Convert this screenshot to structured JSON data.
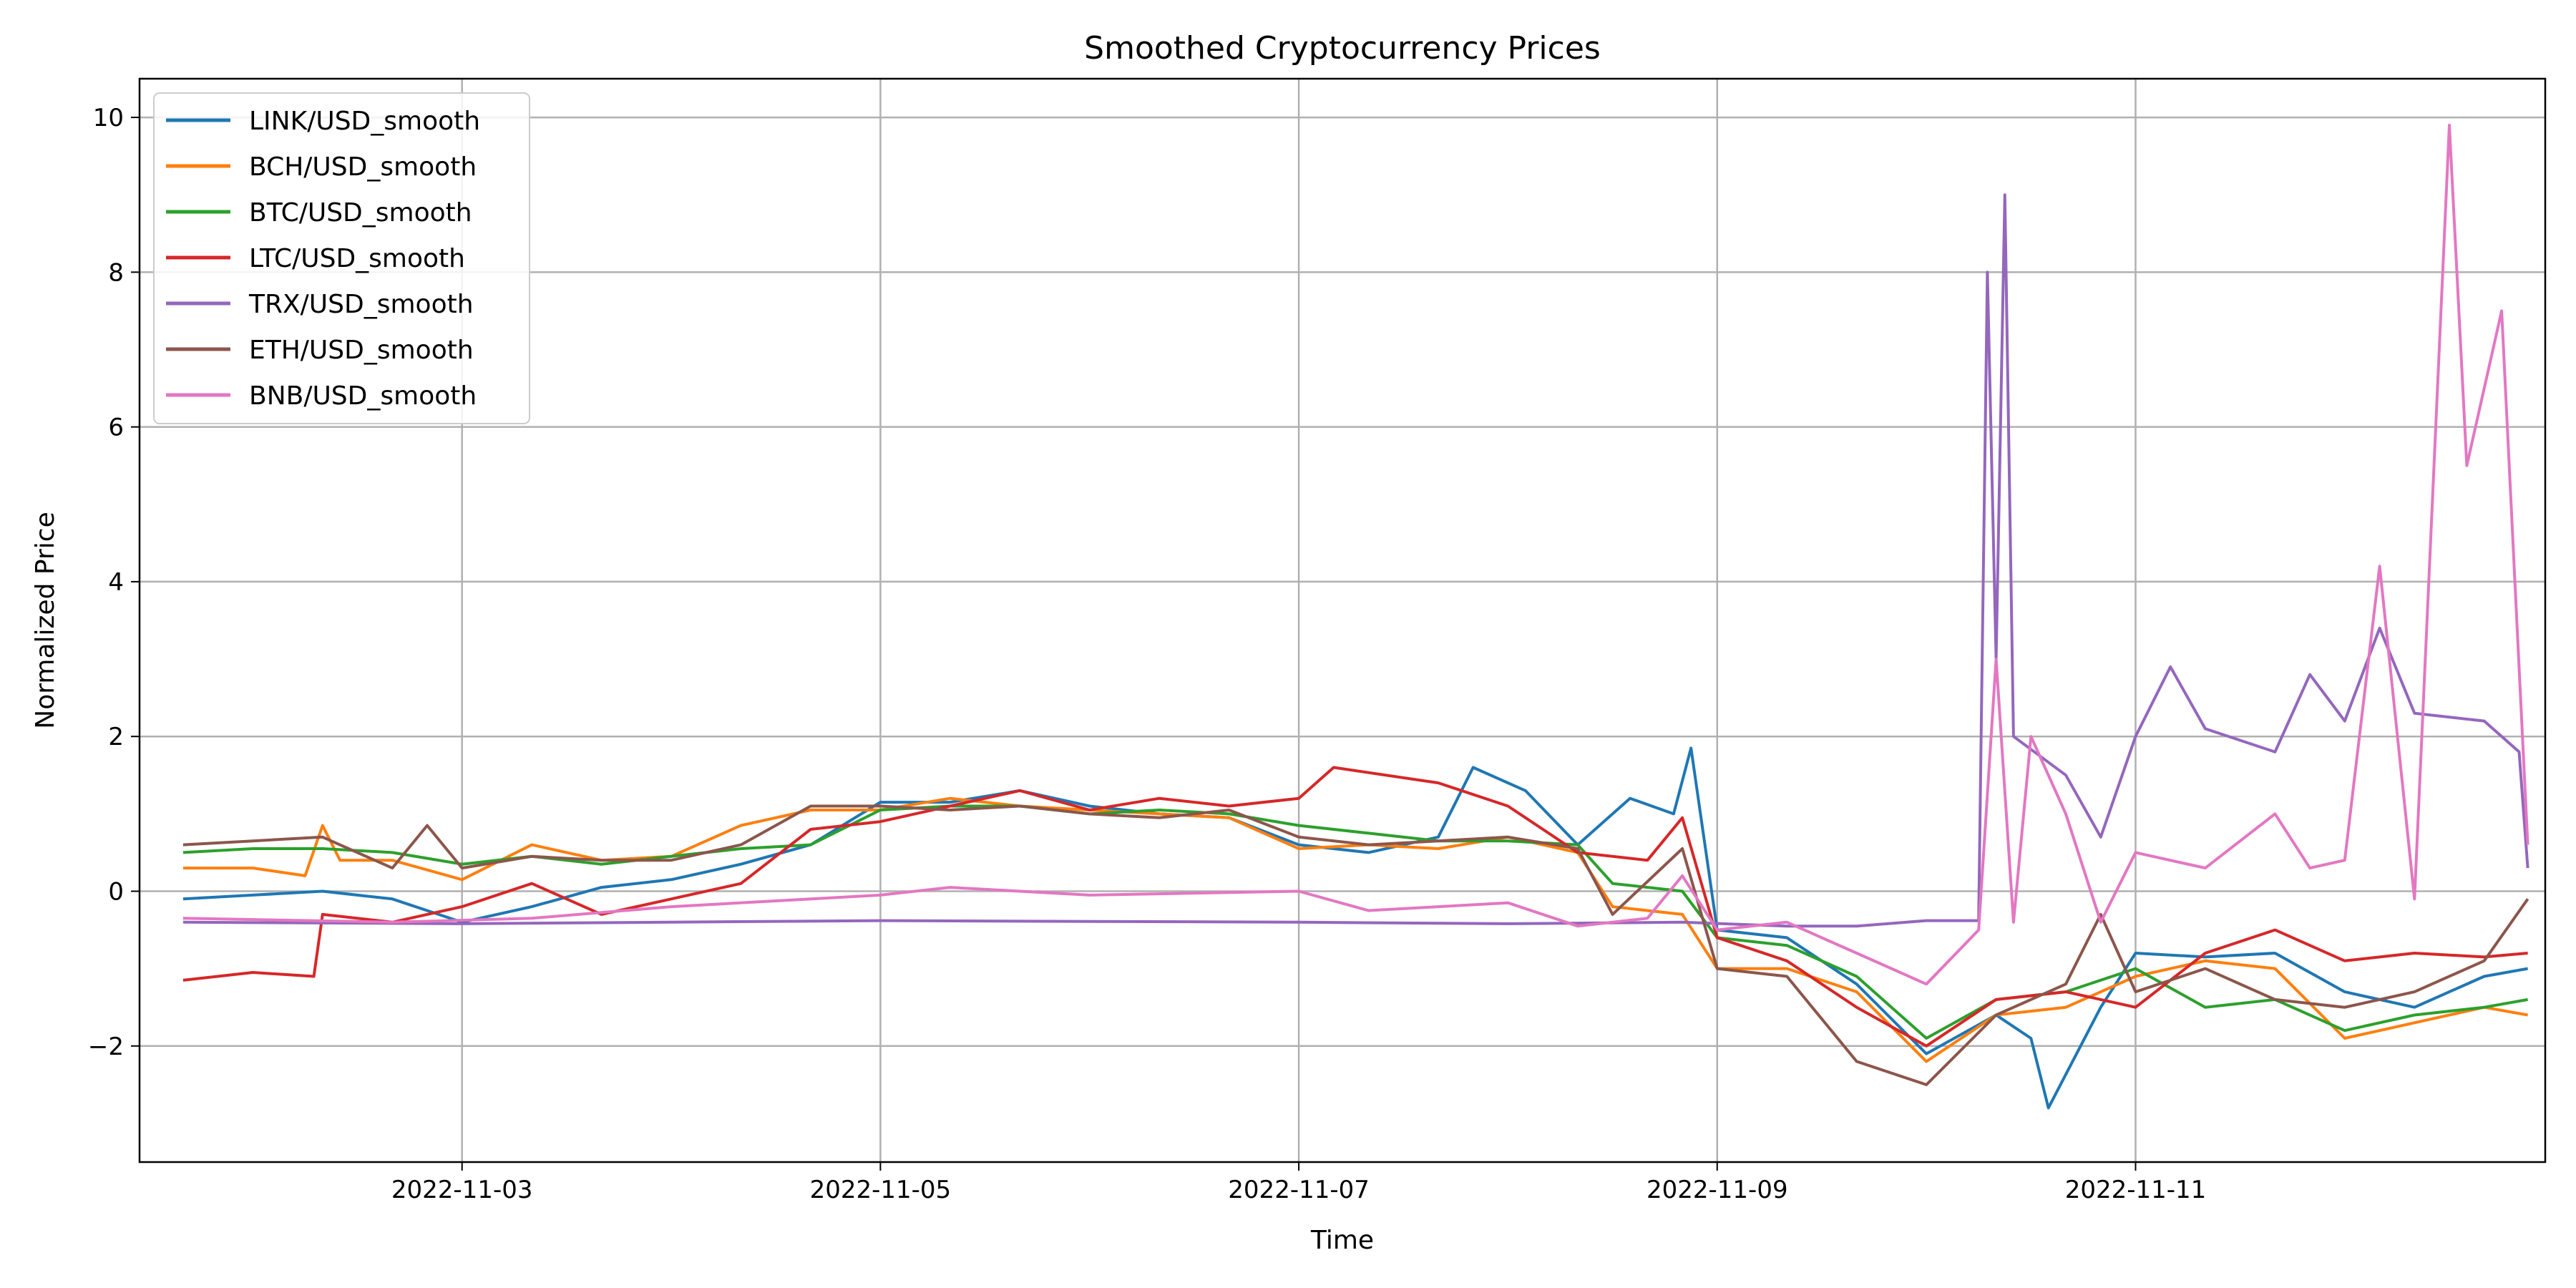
{
  "chart_data": {
    "type": "line",
    "title": "Smoothed Cryptocurrency Prices",
    "xlabel": "Time",
    "ylabel": "Normalized Price",
    "xlim": [
      "2022-11-01T11:00",
      "2022-11-12T23:00"
    ],
    "ylim": [
      -3.5,
      10.5
    ],
    "xticks": [
      "2022-11-03",
      "2022-11-05",
      "2022-11-07",
      "2022-11-09",
      "2022-11-11"
    ],
    "yticks": [
      -2,
      0,
      2,
      4,
      6,
      8,
      10
    ],
    "grid": true,
    "legend_position": "top-left",
    "series": [
      {
        "name": "LINK/USD_smooth",
        "color": "#1f77b4",
        "points": [
          [
            "2022-11-01T16:00",
            -0.1
          ],
          [
            "2022-11-02T00:00",
            -0.05
          ],
          [
            "2022-11-02T08:00",
            0.0
          ],
          [
            "2022-11-02T16:00",
            -0.1
          ],
          [
            "2022-11-03T00:00",
            -0.4
          ],
          [
            "2022-11-03T08:00",
            -0.2
          ],
          [
            "2022-11-03T16:00",
            0.05
          ],
          [
            "2022-11-04T00:00",
            0.15
          ],
          [
            "2022-11-04T08:00",
            0.35
          ],
          [
            "2022-11-04T16:00",
            0.6
          ],
          [
            "2022-11-05T00:00",
            1.15
          ],
          [
            "2022-11-05T08:00",
            1.15
          ],
          [
            "2022-11-05T16:00",
            1.3
          ],
          [
            "2022-11-06T00:00",
            1.1
          ],
          [
            "2022-11-06T08:00",
            1.0
          ],
          [
            "2022-11-06T16:00",
            0.95
          ],
          [
            "2022-11-07T00:00",
            0.6
          ],
          [
            "2022-11-07T08:00",
            0.5
          ],
          [
            "2022-11-07T16:00",
            0.7
          ],
          [
            "2022-11-07T20:00",
            1.6
          ],
          [
            "2022-11-08T02:00",
            1.3
          ],
          [
            "2022-11-08T08:00",
            0.6
          ],
          [
            "2022-11-08T14:00",
            1.2
          ],
          [
            "2022-11-08T19:00",
            1.0
          ],
          [
            "2022-11-08T21:00",
            1.85
          ],
          [
            "2022-11-09T00:00",
            -0.5
          ],
          [
            "2022-11-09T08:00",
            -0.6
          ],
          [
            "2022-11-09T16:00",
            -1.2
          ],
          [
            "2022-11-10T00:00",
            -2.1
          ],
          [
            "2022-11-10T08:00",
            -1.6
          ],
          [
            "2022-11-10T12:00",
            -1.9
          ],
          [
            "2022-11-10T14:00",
            -2.8
          ],
          [
            "2022-11-10T20:00",
            -1.5
          ],
          [
            "2022-11-11T00:00",
            -0.8
          ],
          [
            "2022-11-11T08:00",
            -0.85
          ],
          [
            "2022-11-11T16:00",
            -0.8
          ],
          [
            "2022-11-12T00:00",
            -1.3
          ],
          [
            "2022-11-12T08:00",
            -1.5
          ],
          [
            "2022-11-12T16:00",
            -1.1
          ],
          [
            "2022-11-12T21:00",
            -1.0
          ]
        ]
      },
      {
        "name": "BCH/USD_smooth",
        "color": "#ff7f0e",
        "points": [
          [
            "2022-11-01T16:00",
            0.3
          ],
          [
            "2022-11-02T00:00",
            0.3
          ],
          [
            "2022-11-02T06:00",
            0.2
          ],
          [
            "2022-11-02T08:00",
            0.85
          ],
          [
            "2022-11-02T10:00",
            0.4
          ],
          [
            "2022-11-02T16:00",
            0.4
          ],
          [
            "2022-11-03T00:00",
            0.15
          ],
          [
            "2022-11-03T08:00",
            0.6
          ],
          [
            "2022-11-03T16:00",
            0.4
          ],
          [
            "2022-11-04T00:00",
            0.45
          ],
          [
            "2022-11-04T08:00",
            0.85
          ],
          [
            "2022-11-04T16:00",
            1.05
          ],
          [
            "2022-11-05T00:00",
            1.05
          ],
          [
            "2022-11-05T08:00",
            1.2
          ],
          [
            "2022-11-05T16:00",
            1.1
          ],
          [
            "2022-11-06T00:00",
            1.05
          ],
          [
            "2022-11-06T08:00",
            1.0
          ],
          [
            "2022-11-06T16:00",
            0.95
          ],
          [
            "2022-11-07T00:00",
            0.55
          ],
          [
            "2022-11-07T08:00",
            0.6
          ],
          [
            "2022-11-07T16:00",
            0.55
          ],
          [
            "2022-11-08T00:00",
            0.7
          ],
          [
            "2022-11-08T08:00",
            0.5
          ],
          [
            "2022-11-08T12:00",
            -0.2
          ],
          [
            "2022-11-08T20:00",
            -0.3
          ],
          [
            "2022-11-09T00:00",
            -1.0
          ],
          [
            "2022-11-09T08:00",
            -1.0
          ],
          [
            "2022-11-09T16:00",
            -1.3
          ],
          [
            "2022-11-10T00:00",
            -2.2
          ],
          [
            "2022-11-10T08:00",
            -1.6
          ],
          [
            "2022-11-10T16:00",
            -1.5
          ],
          [
            "2022-11-11T00:00",
            -1.1
          ],
          [
            "2022-11-11T08:00",
            -0.9
          ],
          [
            "2022-11-11T16:00",
            -1.0
          ],
          [
            "2022-11-12T00:00",
            -1.9
          ],
          [
            "2022-11-12T08:00",
            -1.7
          ],
          [
            "2022-11-12T16:00",
            -1.5
          ],
          [
            "2022-11-12T21:00",
            -1.6
          ]
        ]
      },
      {
        "name": "BTC/USD_smooth",
        "color": "#2ca02c",
        "points": [
          [
            "2022-11-01T16:00",
            0.5
          ],
          [
            "2022-11-02T00:00",
            0.55
          ],
          [
            "2022-11-02T08:00",
            0.55
          ],
          [
            "2022-11-02T16:00",
            0.5
          ],
          [
            "2022-11-03T00:00",
            0.35
          ],
          [
            "2022-11-03T08:00",
            0.45
          ],
          [
            "2022-11-03T16:00",
            0.35
          ],
          [
            "2022-11-04T00:00",
            0.45
          ],
          [
            "2022-11-04T08:00",
            0.55
          ],
          [
            "2022-11-04T16:00",
            0.6
          ],
          [
            "2022-11-05T00:00",
            1.05
          ],
          [
            "2022-11-05T08:00",
            1.1
          ],
          [
            "2022-11-05T16:00",
            1.1
          ],
          [
            "2022-11-06T00:00",
            1.0
          ],
          [
            "2022-11-06T08:00",
            1.05
          ],
          [
            "2022-11-06T16:00",
            1.0
          ],
          [
            "2022-11-07T00:00",
            0.85
          ],
          [
            "2022-11-07T08:00",
            0.75
          ],
          [
            "2022-11-07T16:00",
            0.65
          ],
          [
            "2022-11-08T00:00",
            0.65
          ],
          [
            "2022-11-08T08:00",
            0.6
          ],
          [
            "2022-11-08T12:00",
            0.1
          ],
          [
            "2022-11-08T20:00",
            0.0
          ],
          [
            "2022-11-09T00:00",
            -0.6
          ],
          [
            "2022-11-09T08:00",
            -0.7
          ],
          [
            "2022-11-09T16:00",
            -1.1
          ],
          [
            "2022-11-10T00:00",
            -1.9
          ],
          [
            "2022-11-10T08:00",
            -1.4
          ],
          [
            "2022-11-10T16:00",
            -1.3
          ],
          [
            "2022-11-11T00:00",
            -1.0
          ],
          [
            "2022-11-11T08:00",
            -1.5
          ],
          [
            "2022-11-11T16:00",
            -1.4
          ],
          [
            "2022-11-12T00:00",
            -1.8
          ],
          [
            "2022-11-12T08:00",
            -1.6
          ],
          [
            "2022-11-12T16:00",
            -1.5
          ],
          [
            "2022-11-12T21:00",
            -1.4
          ]
        ]
      },
      {
        "name": "LTC/USD_smooth",
        "color": "#d62728",
        "points": [
          [
            "2022-11-01T16:00",
            -1.15
          ],
          [
            "2022-11-02T00:00",
            -1.05
          ],
          [
            "2022-11-02T07:00",
            -1.1
          ],
          [
            "2022-11-02T08:00",
            -0.3
          ],
          [
            "2022-11-02T16:00",
            -0.4
          ],
          [
            "2022-11-03T00:00",
            -0.2
          ],
          [
            "2022-11-03T08:00",
            0.1
          ],
          [
            "2022-11-03T16:00",
            -0.3
          ],
          [
            "2022-11-04T00:00",
            -0.1
          ],
          [
            "2022-11-04T08:00",
            0.1
          ],
          [
            "2022-11-04T16:00",
            0.8
          ],
          [
            "2022-11-05T00:00",
            0.9
          ],
          [
            "2022-11-05T08:00",
            1.1
          ],
          [
            "2022-11-05T16:00",
            1.3
          ],
          [
            "2022-11-06T00:00",
            1.05
          ],
          [
            "2022-11-06T08:00",
            1.2
          ],
          [
            "2022-11-06T16:00",
            1.1
          ],
          [
            "2022-11-07T00:00",
            1.2
          ],
          [
            "2022-11-07T04:00",
            1.6
          ],
          [
            "2022-11-07T16:00",
            1.4
          ],
          [
            "2022-11-08T00:00",
            1.1
          ],
          [
            "2022-11-08T08:00",
            0.5
          ],
          [
            "2022-11-08T16:00",
            0.4
          ],
          [
            "2022-11-08T20:00",
            0.95
          ],
          [
            "2022-11-09T00:00",
            -0.6
          ],
          [
            "2022-11-09T08:00",
            -0.9
          ],
          [
            "2022-11-09T16:00",
            -1.5
          ],
          [
            "2022-11-10T00:00",
            -2.0
          ],
          [
            "2022-11-10T08:00",
            -1.4
          ],
          [
            "2022-11-10T16:00",
            -1.3
          ],
          [
            "2022-11-11T00:00",
            -1.5
          ],
          [
            "2022-11-11T08:00",
            -0.8
          ],
          [
            "2022-11-11T16:00",
            -0.5
          ],
          [
            "2022-11-12T00:00",
            -0.9
          ],
          [
            "2022-11-12T08:00",
            -0.8
          ],
          [
            "2022-11-12T16:00",
            -0.85
          ],
          [
            "2022-11-12T21:00",
            -0.8
          ]
        ]
      },
      {
        "name": "TRX/USD_smooth",
        "color": "#9467bd",
        "points": [
          [
            "2022-11-01T16:00",
            -0.4
          ],
          [
            "2022-11-03T00:00",
            -0.42
          ],
          [
            "2022-11-05T00:00",
            -0.38
          ],
          [
            "2022-11-07T00:00",
            -0.4
          ],
          [
            "2022-11-08T00:00",
            -0.42
          ],
          [
            "2022-11-08T20:00",
            -0.4
          ],
          [
            "2022-11-09T08:00",
            -0.45
          ],
          [
            "2022-11-09T16:00",
            -0.45
          ],
          [
            "2022-11-10T00:00",
            -0.38
          ],
          [
            "2022-11-10T06:00",
            -0.38
          ],
          [
            "2022-11-10T07:00",
            8.0
          ],
          [
            "2022-11-10T08:00",
            3.0
          ],
          [
            "2022-11-10T09:00",
            9.0
          ],
          [
            "2022-11-10T10:00",
            2.0
          ],
          [
            "2022-11-10T16:00",
            1.5
          ],
          [
            "2022-11-10T20:00",
            0.7
          ],
          [
            "2022-11-11T00:00",
            2.0
          ],
          [
            "2022-11-11T04:00",
            2.9
          ],
          [
            "2022-11-11T08:00",
            2.1
          ],
          [
            "2022-11-11T16:00",
            1.8
          ],
          [
            "2022-11-11T20:00",
            2.8
          ],
          [
            "2022-11-12T00:00",
            2.2
          ],
          [
            "2022-11-12T04:00",
            3.4
          ],
          [
            "2022-11-12T08:00",
            2.3
          ],
          [
            "2022-11-12T16:00",
            2.2
          ],
          [
            "2022-11-12T20:00",
            1.8
          ],
          [
            "2022-11-12T21:00",
            0.3
          ]
        ]
      },
      {
        "name": "ETH/USD_smooth",
        "color": "#8c564b",
        "points": [
          [
            "2022-11-01T16:00",
            0.6
          ],
          [
            "2022-11-02T00:00",
            0.65
          ],
          [
            "2022-11-02T08:00",
            0.7
          ],
          [
            "2022-11-02T16:00",
            0.3
          ],
          [
            "2022-11-02T20:00",
            0.85
          ],
          [
            "2022-11-03T00:00",
            0.3
          ],
          [
            "2022-11-03T08:00",
            0.45
          ],
          [
            "2022-11-03T16:00",
            0.4
          ],
          [
            "2022-11-04T00:00",
            0.4
          ],
          [
            "2022-11-04T08:00",
            0.6
          ],
          [
            "2022-11-04T16:00",
            1.1
          ],
          [
            "2022-11-05T00:00",
            1.1
          ],
          [
            "2022-11-05T08:00",
            1.05
          ],
          [
            "2022-11-05T16:00",
            1.1
          ],
          [
            "2022-11-06T00:00",
            1.0
          ],
          [
            "2022-11-06T08:00",
            0.95
          ],
          [
            "2022-11-06T16:00",
            1.05
          ],
          [
            "2022-11-07T00:00",
            0.7
          ],
          [
            "2022-11-07T08:00",
            0.6
          ],
          [
            "2022-11-07T16:00",
            0.65
          ],
          [
            "2022-11-08T00:00",
            0.7
          ],
          [
            "2022-11-08T08:00",
            0.55
          ],
          [
            "2022-11-08T12:00",
            -0.3
          ],
          [
            "2022-11-08T20:00",
            0.55
          ],
          [
            "2022-11-09T00:00",
            -1.0
          ],
          [
            "2022-11-09T08:00",
            -1.1
          ],
          [
            "2022-11-09T16:00",
            -2.2
          ],
          [
            "2022-11-10T00:00",
            -2.5
          ],
          [
            "2022-11-10T08:00",
            -1.6
          ],
          [
            "2022-11-10T16:00",
            -1.2
          ],
          [
            "2022-11-10T20:00",
            -0.3
          ],
          [
            "2022-11-11T00:00",
            -1.3
          ],
          [
            "2022-11-11T08:00",
            -1.0
          ],
          [
            "2022-11-11T16:00",
            -1.4
          ],
          [
            "2022-11-12T00:00",
            -1.5
          ],
          [
            "2022-11-12T08:00",
            -1.3
          ],
          [
            "2022-11-12T16:00",
            -0.9
          ],
          [
            "2022-11-12T21:00",
            -0.1
          ]
        ]
      },
      {
        "name": "BNB/USD_smooth",
        "color": "#e377c2",
        "points": [
          [
            "2022-11-01T16:00",
            -0.35
          ],
          [
            "2022-11-02T16:00",
            -0.4
          ],
          [
            "2022-11-03T08:00",
            -0.35
          ],
          [
            "2022-11-04T00:00",
            -0.2
          ],
          [
            "2022-11-05T00:00",
            -0.05
          ],
          [
            "2022-11-05T08:00",
            0.05
          ],
          [
            "2022-11-06T00:00",
            -0.05
          ],
          [
            "2022-11-07T00:00",
            0.0
          ],
          [
            "2022-11-07T08:00",
            -0.25
          ],
          [
            "2022-11-08T00:00",
            -0.15
          ],
          [
            "2022-11-08T08:00",
            -0.45
          ],
          [
            "2022-11-08T16:00",
            -0.35
          ],
          [
            "2022-11-08T20:00",
            0.2
          ],
          [
            "2022-11-09T00:00",
            -0.5
          ],
          [
            "2022-11-09T08:00",
            -0.4
          ],
          [
            "2022-11-09T16:00",
            -0.8
          ],
          [
            "2022-11-10T00:00",
            -1.2
          ],
          [
            "2022-11-10T06:00",
            -0.5
          ],
          [
            "2022-11-10T08:00",
            3.0
          ],
          [
            "2022-11-10T10:00",
            -0.4
          ],
          [
            "2022-11-10T12:00",
            2.0
          ],
          [
            "2022-11-10T16:00",
            1.0
          ],
          [
            "2022-11-10T20:00",
            -0.4
          ],
          [
            "2022-11-11T00:00",
            0.5
          ],
          [
            "2022-11-11T08:00",
            0.3
          ],
          [
            "2022-11-11T16:00",
            1.0
          ],
          [
            "2022-11-11T20:00",
            0.3
          ],
          [
            "2022-11-12T00:00",
            0.4
          ],
          [
            "2022-11-12T04:00",
            4.2
          ],
          [
            "2022-11-12T08:00",
            -0.1
          ],
          [
            "2022-11-12T12:00",
            9.9
          ],
          [
            "2022-11-12T14:00",
            5.5
          ],
          [
            "2022-11-12T18:00",
            7.5
          ],
          [
            "2022-11-12T21:00",
            0.6
          ]
        ]
      }
    ]
  }
}
